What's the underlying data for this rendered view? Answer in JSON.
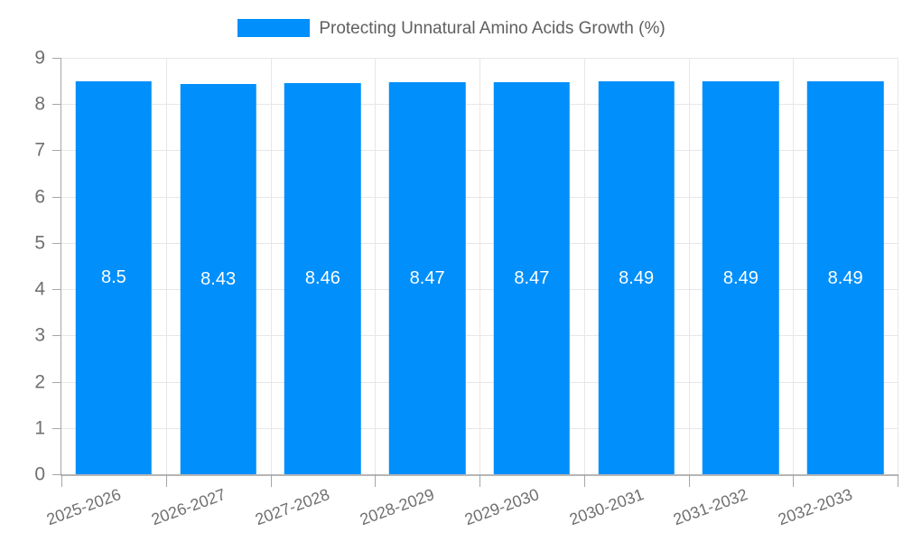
{
  "legend": {
    "label": "Protecting Unnatural Amino Acids Growth (%)"
  },
  "chart_data": {
    "type": "bar",
    "title": "Protecting Unnatural Amino Acids Growth (%)",
    "categories": [
      "2025-2026",
      "2026-2027",
      "2027-2028",
      "2028-2029",
      "2029-2030",
      "2030-2031",
      "2031-2032",
      "2032-2033"
    ],
    "values": [
      8.5,
      8.43,
      8.46,
      8.47,
      8.47,
      8.49,
      8.49,
      8.49
    ],
    "value_labels": [
      "8.5",
      "8.43",
      "8.46",
      "8.47",
      "8.47",
      "8.49",
      "8.49",
      "8.49"
    ],
    "xlabel": "",
    "ylabel": "",
    "ylim": [
      0,
      9
    ],
    "ytick_step": 1,
    "y_tick_labels": [
      "0",
      "1",
      "2",
      "3",
      "4",
      "5",
      "6",
      "7",
      "8",
      "9"
    ],
    "grid": true,
    "legend_position": "top",
    "bar_color": "#008FFB",
    "value_label_color": "#ffffff",
    "bar_width_ratio": 0.73
  },
  "colors": {
    "background": "#ffffff",
    "grid_line": "#e7e7e7",
    "axis_line": "#b6b6b6",
    "axis_strong": "#a6a6a6",
    "tick_label": "#707070",
    "legend_text": "#5f5f5f"
  }
}
